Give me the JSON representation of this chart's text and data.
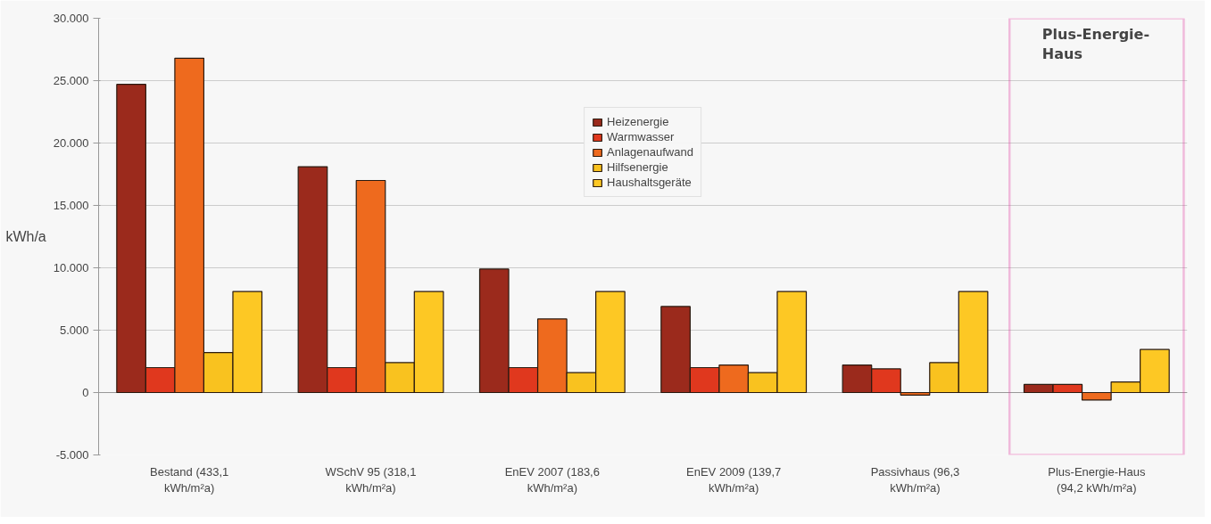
{
  "chart_data": {
    "type": "bar",
    "categories": [
      "Bestand (433,1\nkWh/m²a)",
      "WSchV 95 (318,1\nkWh/m²a)",
      "EnEV 2007 (183,6\nkWh/m²a)",
      "EnEV 2009 (139,7\nkWh/m²a)",
      "Passivhaus (96,3\nkWh/m²a)",
      "Plus-Energie-Haus\n(94,2 kWh/m²a)"
    ],
    "series": [
      {
        "name": "Heizenergie",
        "color": "#9b2a1c",
        "values": [
          24700,
          18100,
          9900,
          6900,
          2200,
          650
        ]
      },
      {
        "name": "Warmwasser",
        "color": "#e0381e",
        "values": [
          2000,
          2000,
          2000,
          2000,
          1900,
          650
        ]
      },
      {
        "name": "Anlagenaufwand",
        "color": "#ee6a1e",
        "values": [
          26800,
          17000,
          5900,
          2200,
          -200,
          -600
        ]
      },
      {
        "name": "Hilfsenergie",
        "color": "#f9c21f",
        "values": [
          3200,
          2400,
          1600,
          1600,
          2400,
          850
        ]
      },
      {
        "name": "Haushaltsgeräte",
        "color": "#fdc824",
        "values": [
          8100,
          8100,
          8100,
          8100,
          8100,
          3450
        ]
      }
    ],
    "ylabel": "kWh/a",
    "ylim": [
      -5000,
      30000
    ],
    "yticks": [
      {
        "value": -5000,
        "label": "-5.000"
      },
      0,
      {
        "value": 5000,
        "label": "5.000"
      },
      {
        "value": 10000,
        "label": "10.000"
      },
      {
        "value": 15000,
        "label": "15.000"
      },
      {
        "value": 20000,
        "label": "20.000"
      },
      {
        "value": 25000,
        "label": "25.000"
      },
      {
        "value": 30000,
        "label": "30.000"
      }
    ],
    "annotations": [
      "Plus-Energie-\nHaus"
    ],
    "grid": "y",
    "legend": "top"
  }
}
